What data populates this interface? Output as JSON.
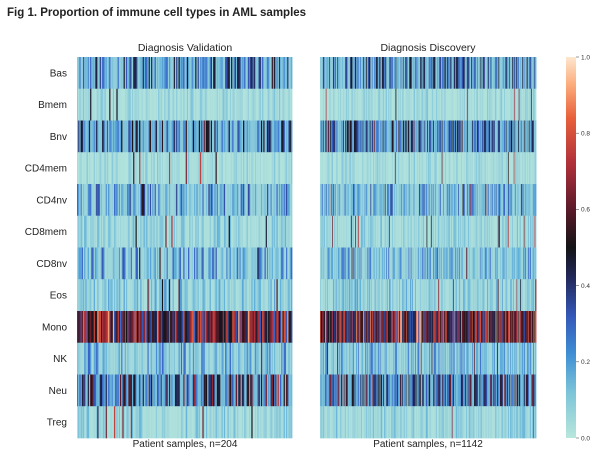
{
  "figure": {
    "title": "Fig 1. Proportion of immune cell types in AML samples"
  },
  "chart_data": {
    "type": "heatmap",
    "rows": [
      "Bas",
      "Bmem",
      "Bnv",
      "CD4mem",
      "CD4nv",
      "CD8mem",
      "CD8nv",
      "Eos",
      "Mono",
      "NK",
      "Neu",
      "Treg"
    ],
    "panels": [
      {
        "title": "Diagnosis Validation",
        "xlabel": "Patient samples, n=204",
        "n_samples": 204
      },
      {
        "title": "Diagnosis Discovery",
        "xlabel": "Patient samples, n=1142",
        "n_samples": 1142
      }
    ],
    "row_mean_proportion": {
      "Bas": 0.12,
      "Bmem": 0.02,
      "Bnv": 0.15,
      "CD4mem": 0.02,
      "CD4nv": 0.08,
      "CD8mem": 0.03,
      "CD8nv": 0.07,
      "Eos": 0.04,
      "Mono": 0.45,
      "NK": 0.06,
      "Neu": 0.18,
      "Treg": 0.03
    },
    "colorbar": {
      "range": [
        0.0,
        1.0
      ],
      "ticks": [
        "0.0",
        "0.2",
        "0.4",
        "0.6",
        "0.8",
        "1.0"
      ],
      "colormap": "icefire",
      "stops": [
        "#b8e6dc",
        "#5fb0da",
        "#3660c8",
        "#242a5c",
        "#141416",
        "#5a1a2a",
        "#b0303a",
        "#e8603a",
        "#fcb182",
        "#fde6cf"
      ]
    }
  }
}
